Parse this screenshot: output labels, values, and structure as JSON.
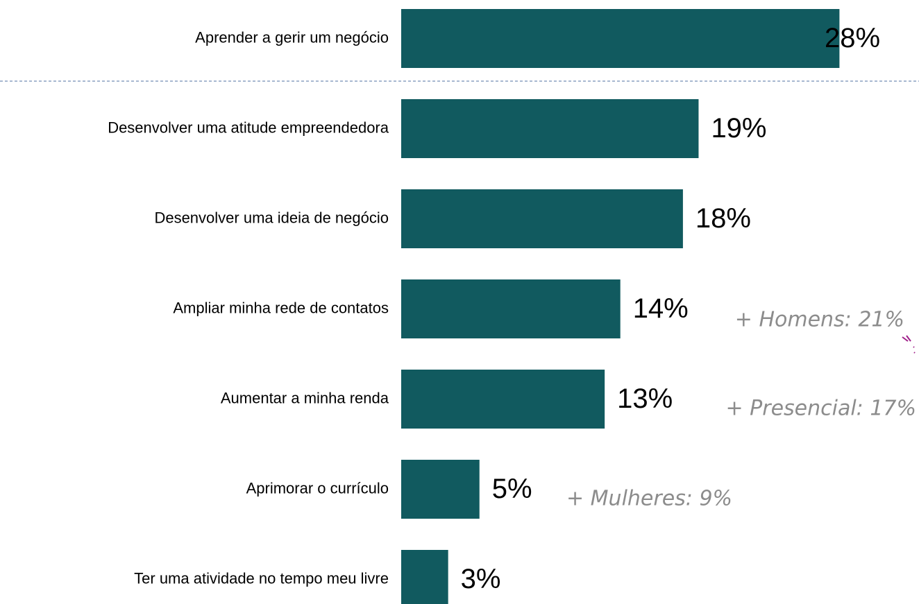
{
  "chart_data": {
    "type": "hbar",
    "categories": [
      "Aprender a gerir um negócio",
      "Desenvolver uma atitude empreendedora",
      "Desenvolver uma ideia de negócio",
      "Ampliar minha rede de contatos",
      "Aumentar a minha renda",
      "Aprimorar o currículo",
      "Ter uma atividade no tempo meu livre"
    ],
    "values": [
      28,
      19,
      18,
      14,
      13,
      5,
      3
    ],
    "value_labels": [
      "28%",
      "19%",
      "18%",
      "14%",
      "13%",
      "5%",
      "3%"
    ],
    "color": "#115a5f",
    "annotations": [
      "+ Homens: 21%",
      "+ Presencial: 17%",
      "+ Mulheres: 9%"
    ]
  }
}
